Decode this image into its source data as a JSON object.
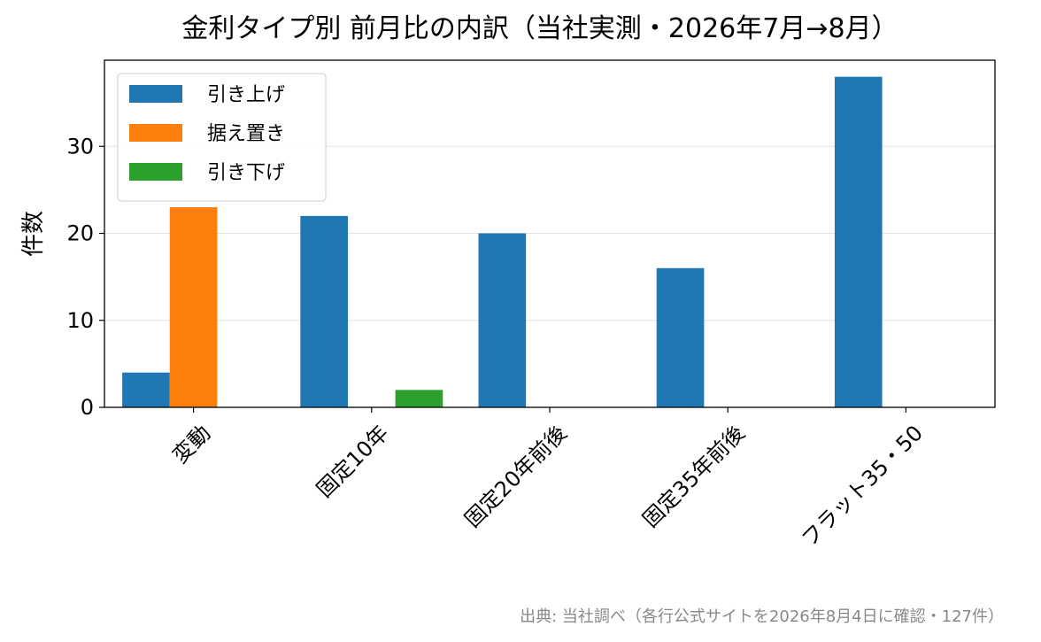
{
  "chart_data": {
    "type": "bar",
    "title": "金利タイプ別 前月比の内訳（当社実測・2026年7月→8月）",
    "xlabel": "",
    "ylabel": "件数",
    "categories": [
      "変動",
      "固定10年",
      "固定20年前後",
      "固定35年前後",
      "フラット35・50"
    ],
    "series": [
      {
        "name": "引き上げ",
        "color": "#1f77b4",
        "values": [
          4,
          22,
          20,
          16,
          38
        ]
      },
      {
        "name": "据え置き",
        "color": "#ff7f0e",
        "values": [
          23,
          0,
          0,
          0,
          0
        ]
      },
      {
        "name": "引き下げ",
        "color": "#2ca02c",
        "values": [
          0,
          2,
          0,
          0,
          0
        ]
      }
    ],
    "ylim": [
      0,
      39.9
    ],
    "yticks": [
      0,
      10,
      20,
      30
    ],
    "grid": "y",
    "legend_position": "top-left",
    "source_note": "出典: 当社調べ（各行公式サイトを2026年8月4日に確認・127件）"
  }
}
